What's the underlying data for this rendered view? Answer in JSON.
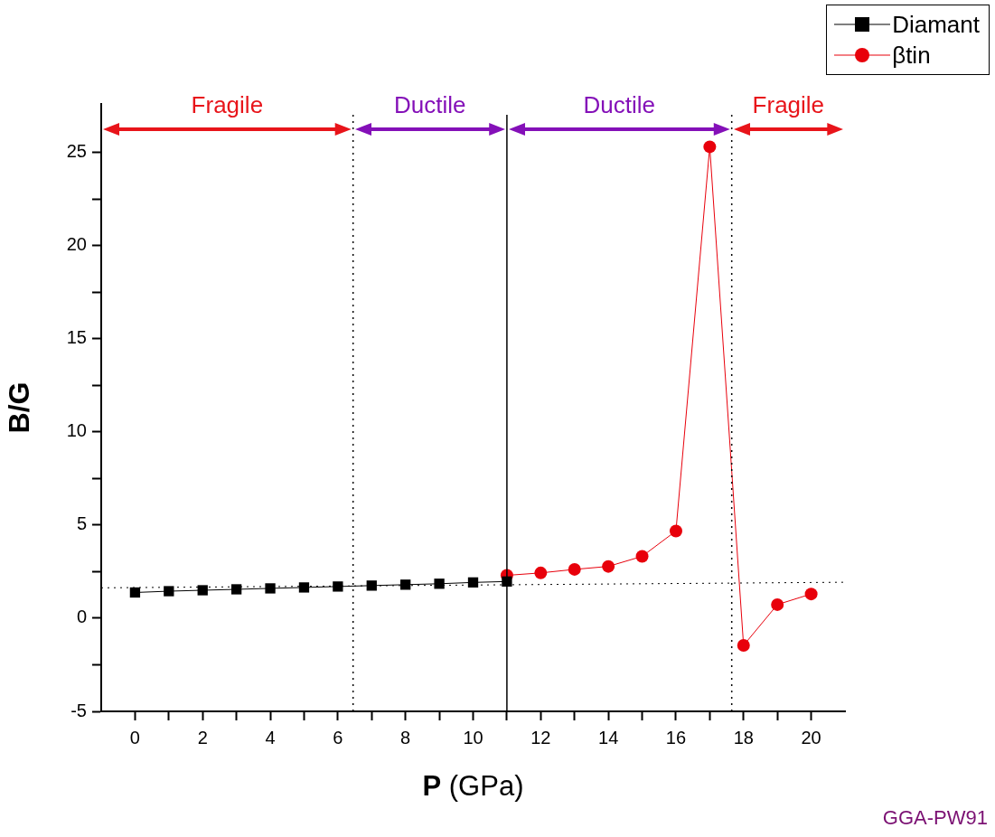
{
  "chart_data": {
    "type": "line",
    "xlabel": "P (GPa)",
    "ylabel": "B/G",
    "xlim": [
      -1,
      21
    ],
    "ylim": [
      -5,
      27.6
    ],
    "xticks": [
      0,
      {
        "value": 1,
        "label": null
      },
      2,
      {
        "value": 3,
        "label": null
      },
      4,
      {
        "value": 5,
        "label": null
      },
      6,
      {
        "value": 7,
        "label": null
      },
      8,
      {
        "value": 9,
        "label": null
      },
      10,
      {
        "value": 11,
        "label": null
      },
      12,
      {
        "value": 13,
        "label": null
      },
      14,
      {
        "value": 15,
        "label": null
      },
      16,
      {
        "value": 17,
        "label": null
      },
      18,
      {
        "value": 19,
        "label": null
      },
      20
    ],
    "yticks": [
      -5,
      {
        "value": -2.5,
        "label": null
      },
      0,
      {
        "value": 2.5,
        "label": null
      },
      5,
      {
        "value": 7.5,
        "label": null
      },
      10,
      {
        "value": 12.5,
        "label": null
      },
      15,
      {
        "value": 17.5,
        "label": null
      },
      20,
      {
        "value": 22.5,
        "label": null
      },
      25
    ],
    "series": [
      {
        "name": "Diamant",
        "color": "#000000",
        "marker": "square",
        "x": [
          0,
          1,
          2,
          3,
          4,
          5,
          6,
          7,
          8,
          9,
          10,
          11
        ],
        "values": [
          1.38,
          1.45,
          1.5,
          1.55,
          1.6,
          1.65,
          1.7,
          1.75,
          1.8,
          1.85,
          1.92,
          1.97
        ]
      },
      {
        "name": "βtin",
        "color": "#e8000b",
        "marker": "circle",
        "x": [
          11,
          12,
          13,
          14,
          15,
          16,
          17,
          18,
          19,
          20
        ],
        "values": [
          2.3,
          2.43,
          2.62,
          2.78,
          3.32,
          4.68,
          25.3,
          -1.46,
          0.73,
          1.3
        ]
      },
      {
        "type": "line",
        "color": "#000000",
        "marker": "none",
        "line_style": "dotted",
        "x": [
          -1,
          21
        ],
        "values": [
          1.63,
          1.93
        ]
      }
    ],
    "ref_lines": [
      {
        "axis": "x",
        "value": 6.45,
        "line_style": "dotted",
        "color": "#000000"
      },
      {
        "axis": "x",
        "value": 11,
        "line_style": "solid",
        "color": "#000000"
      },
      {
        "axis": "x",
        "value": 17.65,
        "line_style": "dotted",
        "color": "#000000"
      }
    ],
    "legend": "top right",
    "grid": false,
    "annotations": [
      "Fragile",
      "Ductile",
      "Ductile",
      "Fragile",
      "GGA-PW91"
    ]
  }
}
